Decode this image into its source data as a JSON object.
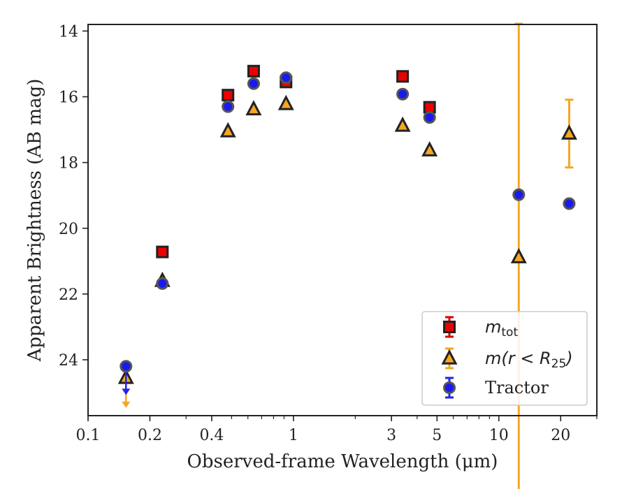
{
  "chart_data": {
    "type": "scatter",
    "xlabel": "Observed-frame Wavelength (μm)",
    "ylabel": "Apparent Brightness (AB mag)",
    "xscale": "log",
    "xlim": [
      0.1,
      30
    ],
    "ylim": [
      25.7,
      13.8
    ],
    "y_inverted": true,
    "xticks": [
      {
        "value": 0.1,
        "label": "0.1"
      },
      {
        "value": 0.2,
        "label": "0.2"
      },
      {
        "value": 0.4,
        "label": "0.4"
      },
      {
        "value": 1,
        "label": "1"
      },
      {
        "value": 3,
        "label": "3"
      },
      {
        "value": 5,
        "label": "5"
      },
      {
        "value": 10,
        "label": "10"
      },
      {
        "value": 20,
        "label": "20"
      }
    ],
    "yticks": [
      {
        "value": 14,
        "label": "14"
      },
      {
        "value": 16,
        "label": "16"
      },
      {
        "value": 18,
        "label": "18"
      },
      {
        "value": 20,
        "label": "20"
      },
      {
        "value": 22,
        "label": "22"
      },
      {
        "value": 24,
        "label": "24"
      }
    ],
    "grid": false,
    "legend_position": "lower-right",
    "series": [
      {
        "name": "m_tot",
        "legend_label": "m",
        "legend_sub": "tot",
        "marker": "square",
        "color": "#ee0000",
        "edgecolor": "#222222",
        "errcolor": "#dd0000",
        "points": [
          {
            "x": 0.23,
            "y": 20.72
          },
          {
            "x": 0.48,
            "y": 15.95
          },
          {
            "x": 0.64,
            "y": 15.22
          },
          {
            "x": 0.92,
            "y": 15.55
          },
          {
            "x": 3.4,
            "y": 15.38
          },
          {
            "x": 4.6,
            "y": 16.32
          }
        ]
      },
      {
        "name": "m(r<R25)",
        "legend_label": "m(r < R",
        "legend_sub": "25",
        "legend_tail": ")",
        "marker": "triangle",
        "color": "#f5a623",
        "edgecolor": "#222222",
        "errcolor": "#f5a623",
        "points": [
          {
            "x": 0.153,
            "y": 24.55,
            "upper_limit": true
          },
          {
            "x": 0.23,
            "y": 21.6
          },
          {
            "x": 0.48,
            "y": 17.05
          },
          {
            "x": 0.64,
            "y": 16.38
          },
          {
            "x": 0.92,
            "y": 16.22
          },
          {
            "x": 3.4,
            "y": 16.88
          },
          {
            "x": 4.6,
            "y": 17.63
          },
          {
            "x": 12.5,
            "y": 20.88,
            "yerr": [
              7.1,
              7.1
            ]
          },
          {
            "x": 22.0,
            "y": 17.12,
            "yerr": [
              1.03,
              1.03
            ]
          }
        ]
      },
      {
        "name": "Tractor",
        "legend_label": "Tractor",
        "marker": "circle",
        "color": "#1a1aee",
        "edgecolor": "#555555",
        "errcolor": "#2222ee",
        "points": [
          {
            "x": 0.153,
            "y": 24.2,
            "upper_limit": true
          },
          {
            "x": 0.23,
            "y": 21.68
          },
          {
            "x": 0.48,
            "y": 16.3
          },
          {
            "x": 0.64,
            "y": 15.6
          },
          {
            "x": 0.92,
            "y": 15.42
          },
          {
            "x": 3.4,
            "y": 15.92
          },
          {
            "x": 4.6,
            "y": 16.63
          },
          {
            "x": 12.5,
            "y": 18.98
          },
          {
            "x": 22.0,
            "y": 19.25
          }
        ]
      }
    ]
  }
}
